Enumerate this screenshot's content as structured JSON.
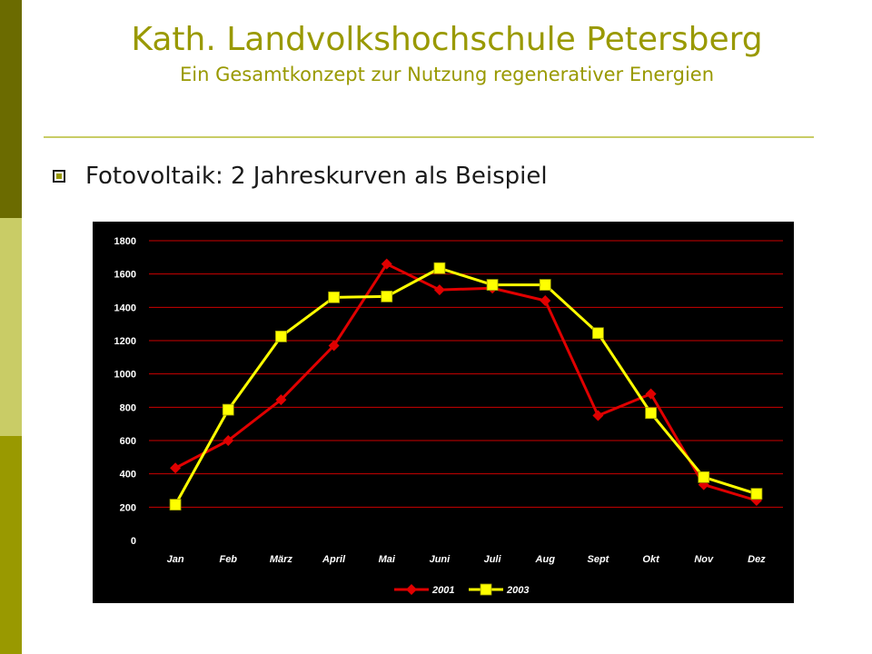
{
  "header": {
    "title": "Kath. Landvolkshochschule Petersberg",
    "subtitle": "Ein Gesamtkonzept zur Nutzung regenerativer Energien"
  },
  "bullet": {
    "text": "Fotovoltaik: 2 Jahreskurven als Beispiel"
  },
  "colors": {
    "accent": "#999900",
    "sidebar_dark": "#6b6b00",
    "sidebar_light": "#c9cc66",
    "chart_background": "#000000",
    "gridline": "#cc0000"
  },
  "chart_data": {
    "type": "line",
    "categories": [
      "Jan",
      "Feb",
      "März",
      "April",
      "Mai",
      "Juni",
      "Juli",
      "Aug",
      "Sept",
      "Okt",
      "Nov",
      "Dez"
    ],
    "series": [
      {
        "name": "2001",
        "color": "#e00000",
        "marker": "diamond",
        "values": [
          435,
          600,
          845,
          1170,
          1660,
          1505,
          1515,
          1440,
          750,
          880,
          335,
          240
        ]
      },
      {
        "name": "2003",
        "color": "#ffff00",
        "marker": "square",
        "values": [
          215,
          785,
          1225,
          1460,
          1465,
          1635,
          1535,
          1535,
          1245,
          765,
          380,
          280
        ]
      }
    ],
    "yticks": [
      0,
      200,
      400,
      600,
      800,
      1000,
      1200,
      1400,
      1600,
      1800
    ],
    "ylim": [
      0,
      1800
    ],
    "grid": true,
    "legend": "bottom-center",
    "title": "",
    "xlabel": "",
    "ylabel": ""
  }
}
